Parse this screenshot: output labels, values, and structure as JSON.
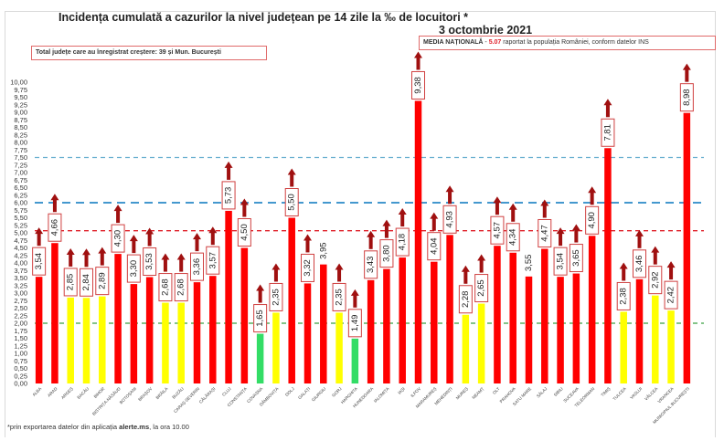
{
  "header": {
    "title": "Incidența cumulată a cazurilor la nivel județean pe 14 zile la ‰ de locuitori *",
    "date": "3 octombrie 2021",
    "increase_note": "Total județe care au înregistrat creștere:  39 și Mun. București",
    "national_label": "MEDIA NAȚIONALĂ",
    "national_sep": " - ",
    "national_value": "5.07",
    "national_rest": " raportat la populația României, conform datelor INS"
  },
  "footnote": {
    "prefix": "*prin exportarea datelor din aplicația ",
    "app": "alerte.ms",
    "suffix": ", la ora 10.00"
  },
  "colors": {
    "red": "#ff0000",
    "yellow": "#ffff00",
    "green": "#33dd66",
    "arrow": "#a01010",
    "line_red": "#e0202a",
    "line_blue": "#2a8ac8",
    "line_lightblue": "#6ab0d0",
    "line_green": "#3aa040"
  },
  "chart_data": {
    "type": "bar",
    "title": "Incidența cumulată a cazurilor la nivel județean pe 14 zile la ‰ de locuitori *",
    "subtitle": "3 octombrie 2021",
    "xlabel": "",
    "ylabel": "",
    "ylim": [
      0,
      10
    ],
    "ytick_step": 0.25,
    "grid": false,
    "decimal_separator": ",",
    "reference_lines": [
      {
        "name": "media-nationala",
        "value": 5.07,
        "color": "red"
      },
      {
        "name": "prag-6",
        "value": 6.0,
        "color": "blue"
      },
      {
        "name": "prag-7.5",
        "value": 7.5,
        "color": "lightblue"
      },
      {
        "name": "prag-2",
        "value": 2.0,
        "color": "green"
      }
    ],
    "categories": [
      "ALBA",
      "ARAD",
      "ARGEȘ",
      "BACĂU",
      "BIHOR",
      "BISTRIȚA-NĂSĂUD",
      "BOTOȘANI",
      "BRAȘOV",
      "BRĂILA",
      "BUZĂU",
      "CARAȘ-SEVERIN",
      "CĂLĂRAȘI",
      "CLUJ",
      "CONSTANȚA",
      "COVASNA",
      "DÂMBOVIȚA",
      "DOLJ",
      "GALAȚI",
      "GIURGIU",
      "GORJ",
      "HARGHITA",
      "HUNEDOARA",
      "IALOMIȚA",
      "IAȘI",
      "ILFOV",
      "MARAMUREȘ",
      "MEHEDINȚI",
      "MUREȘ",
      "NEAMȚ",
      "OLT",
      "PRAHOVA",
      "SATU MARE",
      "SĂLAJ",
      "SIBIU",
      "SUCEAVA",
      "TELEORMAN",
      "TIMIȘ",
      "TULCEA",
      "VASLUI",
      "VÂLCEA",
      "VRANCEA",
      "MUNICIPIUL BUCUREȘTI"
    ],
    "values": [
      3.54,
      4.66,
      2.85,
      2.84,
      2.89,
      4.3,
      3.3,
      3.53,
      2.68,
      2.68,
      3.36,
      3.57,
      5.73,
      4.5,
      1.65,
      2.35,
      5.5,
      3.32,
      3.95,
      2.35,
      1.49,
      3.43,
      3.8,
      4.18,
      9.38,
      4.04,
      4.93,
      2.28,
      2.65,
      4.57,
      4.34,
      3.55,
      4.47,
      3.54,
      3.65,
      4.9,
      7.81,
      2.38,
      3.46,
      2.92,
      2.42,
      8.98
    ],
    "bar_colors": [
      "red",
      "red",
      "yellow",
      "yellow",
      "yellow",
      "red",
      "red",
      "red",
      "yellow",
      "yellow",
      "red",
      "red",
      "red",
      "red",
      "green",
      "yellow",
      "red",
      "red",
      "red",
      "yellow",
      "green",
      "red",
      "red",
      "red",
      "red",
      "red",
      "red",
      "yellow",
      "yellow",
      "red",
      "red",
      "red",
      "red",
      "red",
      "red",
      "red",
      "red",
      "yellow",
      "red",
      "yellow",
      "yellow",
      "red"
    ],
    "increase_arrow": [
      true,
      true,
      true,
      true,
      true,
      true,
      true,
      true,
      true,
      true,
      true,
      true,
      true,
      true,
      true,
      true,
      true,
      true,
      false,
      true,
      true,
      true,
      true,
      true,
      true,
      true,
      true,
      true,
      true,
      true,
      true,
      false,
      true,
      true,
      true,
      true,
      true,
      true,
      true,
      true,
      true,
      true
    ],
    "boxed_label": [
      true,
      true,
      true,
      true,
      true,
      true,
      true,
      true,
      true,
      true,
      true,
      true,
      true,
      true,
      true,
      true,
      true,
      true,
      false,
      true,
      true,
      true,
      true,
      true,
      true,
      true,
      true,
      true,
      true,
      true,
      true,
      false,
      true,
      true,
      true,
      true,
      true,
      true,
      true,
      true,
      true,
      true
    ]
  }
}
